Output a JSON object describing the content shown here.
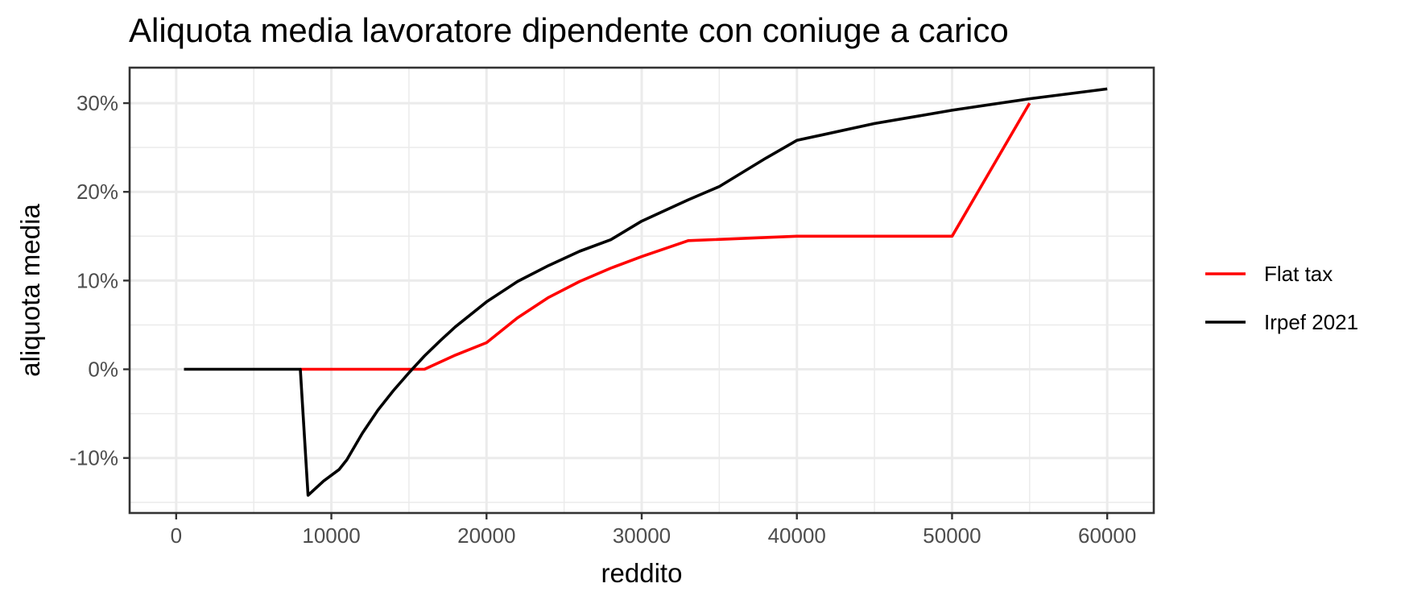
{
  "chart_data": {
    "type": "line",
    "title": "Aliquota media lavoratore dipendente con coniuge a carico",
    "xlabel": "reddito",
    "ylabel": "aliquota media",
    "xlim": [
      -3000,
      63000
    ],
    "ylim": [
      -16.2,
      34.0
    ],
    "x_ticks": [
      0,
      10000,
      20000,
      30000,
      40000,
      50000,
      60000
    ],
    "x_tick_labels": [
      "0",
      "10000",
      "20000",
      "30000",
      "40000",
      "50000",
      "60000"
    ],
    "y_ticks": [
      -10,
      0,
      10,
      20,
      30
    ],
    "y_tick_labels": [
      "-10%",
      "0%",
      "10%",
      "20%",
      "30%"
    ],
    "grid": true,
    "legend_position": "right",
    "series": [
      {
        "name": "Flat tax",
        "color": "#ff0000",
        "points": [
          [
            8000,
            0
          ],
          [
            16000,
            0
          ],
          [
            18000,
            1.6
          ],
          [
            20000,
            3.0
          ],
          [
            22000,
            5.8
          ],
          [
            24000,
            8.1
          ],
          [
            26000,
            9.9
          ],
          [
            28000,
            11.4
          ],
          [
            30000,
            12.7
          ],
          [
            33000,
            14.5
          ],
          [
            40000,
            15.0
          ],
          [
            50000,
            15.0
          ],
          [
            55000,
            30.0
          ]
        ]
      },
      {
        "name": "Irpef 2021",
        "color": "#000000",
        "points": [
          [
            500,
            0
          ],
          [
            8000,
            0
          ],
          [
            8500,
            -14.2
          ],
          [
            9500,
            -12.6
          ],
          [
            10500,
            -11.3
          ],
          [
            11000,
            -10.2
          ],
          [
            12000,
            -7.2
          ],
          [
            13000,
            -4.6
          ],
          [
            14000,
            -2.4
          ],
          [
            15000,
            -0.4
          ],
          [
            16000,
            1.5
          ],
          [
            17000,
            3.2
          ],
          [
            18000,
            4.8
          ],
          [
            20000,
            7.6
          ],
          [
            22000,
            9.9
          ],
          [
            24000,
            11.7
          ],
          [
            26000,
            13.3
          ],
          [
            28000,
            14.6
          ],
          [
            30000,
            16.7
          ],
          [
            33000,
            19.1
          ],
          [
            35000,
            20.6
          ],
          [
            38000,
            23.8
          ],
          [
            40000,
            25.8
          ],
          [
            45000,
            27.7
          ],
          [
            50000,
            29.2
          ],
          [
            55000,
            30.5
          ],
          [
            60000,
            31.6
          ]
        ]
      }
    ]
  }
}
